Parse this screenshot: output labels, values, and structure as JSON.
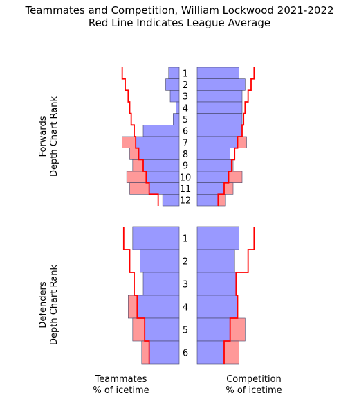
{
  "chart_data": {
    "type": "bar",
    "title": "Teammates and Competition, William Lockwood 2021-2022",
    "subtitle": "Red Line Indicates League Average",
    "panel_labels": {
      "forwards": "Forwards\nDepth Chart Rank",
      "defenders": "Defenders\nDepth Chart Rank",
      "teammates": "Teammates\n% of icetime",
      "competition": "Competition\n% of icetime"
    },
    "colors": {
      "bar": "#9999ff",
      "excess": "#ff9999",
      "average": "#ff0000",
      "edge": "#444466"
    },
    "x_max": 60,
    "forwards": {
      "ranks": [
        "1",
        "2",
        "3",
        "4",
        "5",
        "6",
        "7",
        "8",
        "9",
        "10",
        "11",
        "12"
      ],
      "teammates": [
        7,
        9,
        6,
        2,
        4,
        24,
        38,
        33,
        31,
        35,
        33,
        11
      ],
      "teammates_avg": [
        38,
        36,
        34,
        33,
        32,
        30,
        29,
        27,
        24,
        22,
        20,
        14
      ],
      "competition": [
        28,
        32,
        30,
        30,
        30,
        30,
        33,
        22,
        24,
        30,
        24,
        19
      ],
      "competition_avg": [
        38,
        36,
        34,
        32,
        31,
        30,
        27,
        25,
        23,
        21,
        18,
        14
      ]
    },
    "defenders": {
      "ranks": [
        "1",
        "2",
        "3",
        "4",
        "5",
        "6"
      ],
      "teammates": [
        31,
        26,
        24,
        34,
        31,
        25
      ],
      "teammates_avg": [
        37,
        33,
        30,
        28,
        23,
        20
      ],
      "competition": [
        28,
        25,
        26,
        27,
        32,
        28
      ],
      "competition_avg": [
        38,
        34,
        26,
        27,
        22,
        18
      ]
    }
  }
}
